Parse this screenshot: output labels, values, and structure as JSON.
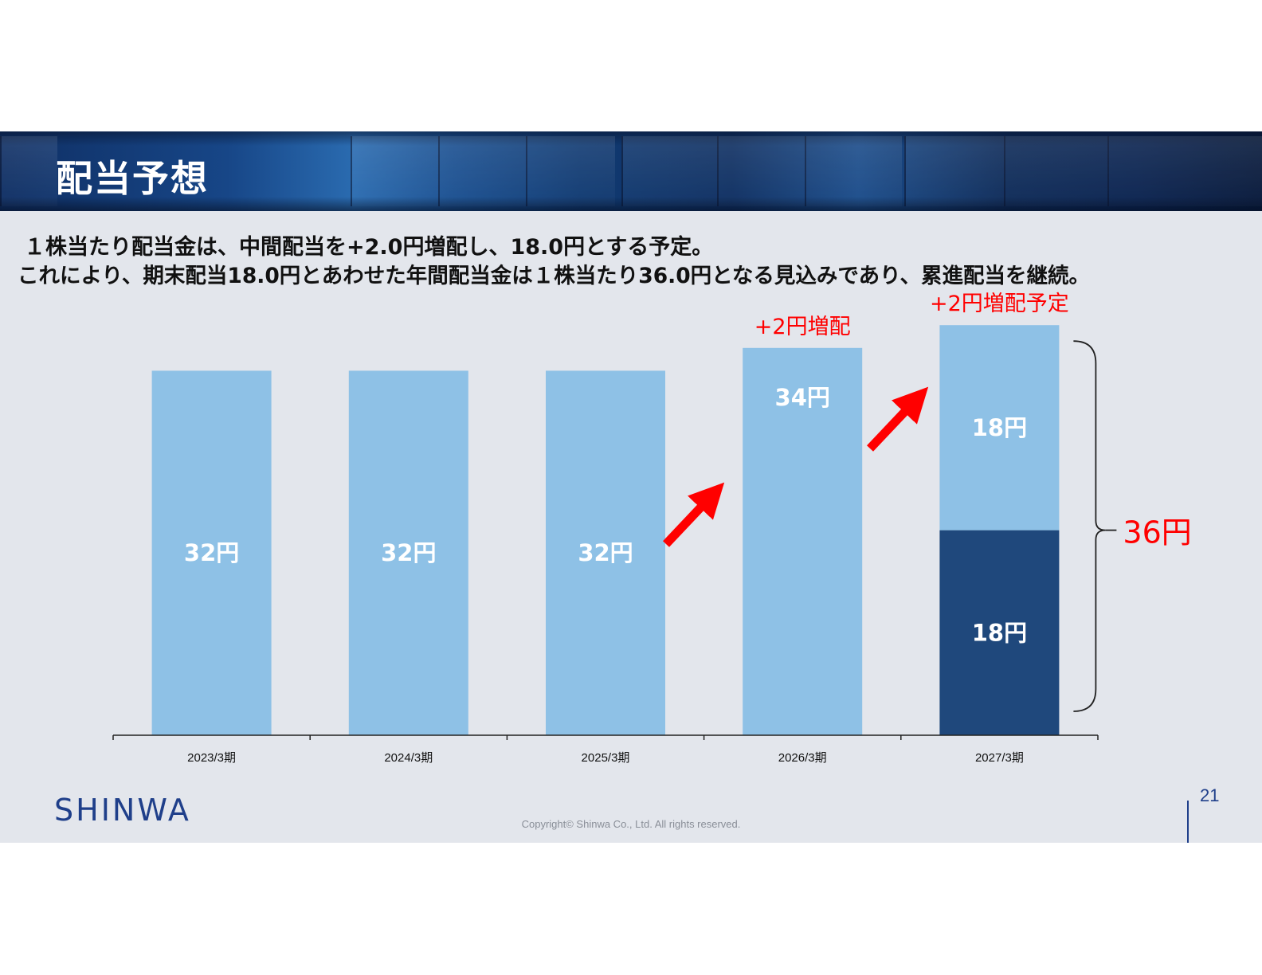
{
  "header": {
    "title": "配当予想"
  },
  "description": {
    "line1": "１株当たり配当金は、中間配当を+2.0円増配し、18.0円とする予定。",
    "line2": "これにより、期末配当18.0円とあわせた年間配当金は１株当たり36.0円となる見込みであり、累進配当を継続。"
  },
  "chart_data": {
    "type": "bar",
    "stacked": true,
    "categories": [
      "2023/3期",
      "2024/3期",
      "2025/3期",
      "2026/3期",
      "2027/3期"
    ],
    "series": [
      {
        "values": [
          32,
          32,
          32,
          34,
          18
        ],
        "labels": [
          "32円",
          "32円",
          "32円",
          "34円",
          "18円"
        ],
        "colors": [
          "#8ec1e6",
          "#8ec1e6",
          "#8ec1e6",
          "#8ec1e6",
          "#1f487c"
        ]
      },
      {
        "values": [
          0,
          0,
          0,
          0,
          18
        ],
        "labels": [
          "",
          "",
          "",
          "",
          "18円"
        ],
        "colors": [
          "#8ec1e6",
          "#8ec1e6",
          "#8ec1e6",
          "#8ec1e6",
          "#8ec1e6"
        ]
      }
    ],
    "ylim": [
      0,
      40
    ],
    "grid": false,
    "annotations": [
      {
        "text": "+2円増配",
        "category": "2026/3期",
        "color": "#ff0000"
      },
      {
        "text": "+2円増配予定",
        "category": "2027/3期",
        "color": "#ff0000"
      },
      {
        "text": "36円",
        "category": "2027/3期",
        "type": "brace-total",
        "color": "#ff0000"
      }
    ]
  },
  "footer": {
    "logo": "SHINWA",
    "copyright": "Copyright© Shinwa Co., Ltd. All rights reserved.",
    "page_number": "21"
  },
  "colors": {
    "accent": "#ff0000",
    "bar_light": "#8ec1e6",
    "bar_dark": "#1f487c",
    "brand": "#1f3f8a"
  }
}
